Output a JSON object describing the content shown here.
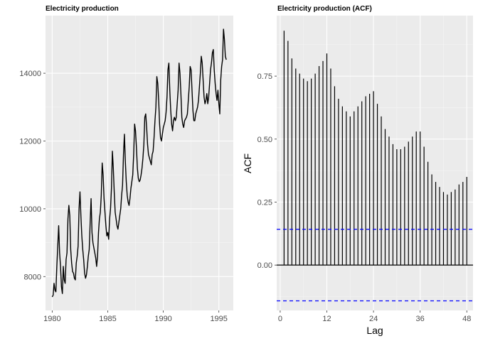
{
  "chart_data": [
    {
      "type": "line",
      "title": "Electricity production",
      "xlabel": "",
      "ylabel": "",
      "xlim": [
        1979.4,
        1996.3
      ],
      "ylim": [
        7000,
        15700
      ],
      "xticks": [
        1980,
        1985,
        1990,
        1995
      ],
      "xtick_labels": [
        "1980",
        "1985",
        "1990",
        "1995"
      ],
      "yticks": [
        8000,
        10000,
        12000,
        14000
      ],
      "ytick_labels": [
        "8000",
        "10000",
        "12000",
        "14000"
      ],
      "grid": true,
      "series": [
        {
          "color": "#000000",
          "x": [
            1980.0,
            1980.083,
            1980.167,
            1980.25,
            1980.333,
            1980.417,
            1980.5,
            1980.583,
            1980.667,
            1980.75,
            1980.833,
            1980.917,
            1981.0,
            1981.083,
            1981.167,
            1981.25,
            1981.333,
            1981.417,
            1981.5,
            1981.583,
            1981.667,
            1981.75,
            1981.833,
            1981.917,
            1982.0,
            1982.083,
            1982.167,
            1982.25,
            1982.333,
            1982.417,
            1982.5,
            1982.583,
            1982.667,
            1982.75,
            1982.833,
            1982.917,
            1983.0,
            1983.083,
            1983.167,
            1983.25,
            1983.333,
            1983.417,
            1983.5,
            1983.583,
            1983.667,
            1983.75,
            1983.833,
            1983.917,
            1984.0,
            1984.083,
            1984.167,
            1984.25,
            1984.333,
            1984.417,
            1984.5,
            1984.583,
            1984.667,
            1984.75,
            1984.833,
            1984.917,
            1985.0,
            1985.083,
            1985.167,
            1985.25,
            1985.333,
            1985.417,
            1985.5,
            1985.583,
            1985.667,
            1985.75,
            1985.833,
            1985.917,
            1986.0,
            1986.083,
            1986.167,
            1986.25,
            1986.333,
            1986.417,
            1986.5,
            1986.583,
            1986.667,
            1986.75,
            1986.833,
            1986.917,
            1987.0,
            1987.083,
            1987.167,
            1987.25,
            1987.333,
            1987.417,
            1987.5,
            1987.583,
            1987.667,
            1987.75,
            1987.833,
            1987.917,
            1988.0,
            1988.083,
            1988.167,
            1988.25,
            1988.333,
            1988.417,
            1988.5,
            1988.583,
            1988.667,
            1988.75,
            1988.833,
            1988.917,
            1989.0,
            1989.083,
            1989.167,
            1989.25,
            1989.333,
            1989.417,
            1989.5,
            1989.583,
            1989.667,
            1989.75,
            1989.833,
            1989.917,
            1990.0,
            1990.083,
            1990.167,
            1990.25,
            1990.333,
            1990.417,
            1990.5,
            1990.583,
            1990.667,
            1990.75,
            1990.833,
            1990.917,
            1991.0,
            1991.083,
            1991.167,
            1991.25,
            1991.333,
            1991.417,
            1991.5,
            1991.583,
            1991.667,
            1991.75,
            1991.833,
            1991.917,
            1992.0,
            1992.083,
            1992.167,
            1992.25,
            1992.333,
            1992.417,
            1992.5,
            1992.583,
            1992.667,
            1992.75,
            1992.833,
            1992.917,
            1993.0,
            1993.083,
            1993.167,
            1993.25,
            1993.333,
            1993.417,
            1993.5,
            1993.583,
            1993.667,
            1993.75,
            1993.833,
            1993.917,
            1994.0,
            1994.083,
            1994.167,
            1994.25,
            1994.333,
            1994.417,
            1994.5,
            1994.583,
            1994.667,
            1994.75,
            1994.833,
            1994.917,
            1995.0,
            1995.083,
            1995.167,
            1995.25,
            1995.333,
            1995.417,
            1995.5,
            1995.583,
            1995.667
          ],
          "y": [
            7400,
            7450,
            7800,
            7600,
            7550,
            8300,
            8900,
            9500,
            8700,
            8300,
            7700,
            7500,
            8300,
            7900,
            7800,
            8500,
            8700,
            9700,
            10100,
            9800,
            8800,
            8400,
            8150,
            8100,
            7950,
            7900,
            8400,
            8600,
            8900,
            10000,
            10500,
            9800,
            9200,
            8800,
            8500,
            8100,
            7950,
            8050,
            8300,
            8600,
            8800,
            9600,
            10300,
            9300,
            9000,
            8850,
            8700,
            8550,
            8300,
            8600,
            9300,
            9700,
            9900,
            10400,
            11350,
            11000,
            10300,
            9900,
            9500,
            9200,
            9300,
            9100,
            9700,
            10000,
            10600,
            11700,
            11200,
            10500,
            9900,
            9700,
            9500,
            9400,
            9600,
            9800,
            10000,
            10400,
            10700,
            11600,
            12200,
            11400,
            10800,
            10400,
            10200,
            10100,
            10300,
            10600,
            10800,
            11000,
            11600,
            12500,
            12300,
            11800,
            11200,
            10900,
            10800,
            10850,
            11000,
            11200,
            11500,
            11900,
            12700,
            12800,
            12400,
            11900,
            11600,
            11500,
            11400,
            11300,
            11600,
            11700,
            12100,
            12600,
            13000,
            13900,
            13700,
            13200,
            12500,
            12100,
            12000,
            12200,
            12400,
            12500,
            12600,
            12850,
            13300,
            14100,
            14300,
            13500,
            12900,
            12500,
            12300,
            12600,
            12700,
            12600,
            12700,
            13100,
            13500,
            14300,
            14000,
            13400,
            12700,
            12500,
            12400,
            12600,
            12650,
            12700,
            12800,
            13200,
            13600,
            14200,
            14100,
            13500,
            12900,
            12600,
            12600,
            12800,
            12900,
            13000,
            13200,
            13600,
            14000,
            14500,
            14300,
            13800,
            13300,
            13100,
            13200,
            13400,
            13100,
            13300,
            13700,
            14100,
            14300,
            14600,
            14700,
            14100,
            13700,
            13400,
            13200,
            13500,
            13100,
            12800,
            13800,
            14200,
            14400,
            15300,
            15000,
            14500,
            14400
          ]
        }
      ]
    },
    {
      "type": "bar",
      "title": "Electricity production (ACF)",
      "xlabel": "Lag",
      "ylabel": "ACF",
      "xlim": [
        -0.9,
        49.6
      ],
      "ylim": [
        -0.18,
        0.99
      ],
      "xticks": [
        0,
        12,
        24,
        36,
        48
      ],
      "xtick_labels": [
        "0",
        "12",
        "24",
        "36",
        "48"
      ],
      "yticks": [
        0.0,
        0.25,
        0.5,
        0.75
      ],
      "ytick_labels": [
        "0.00",
        "0.25",
        "0.50",
        "0.75"
      ],
      "grid": true,
      "confidence_band": 0.142,
      "band_color": "#0000ff",
      "lags": [
        1,
        2,
        3,
        4,
        5,
        6,
        7,
        8,
        9,
        10,
        11,
        12,
        13,
        14,
        15,
        16,
        17,
        18,
        19,
        20,
        21,
        22,
        23,
        24,
        25,
        26,
        27,
        28,
        29,
        30,
        31,
        32,
        33,
        34,
        35,
        36,
        37,
        38,
        39,
        40,
        41,
        42,
        43,
        44,
        45,
        46,
        47,
        48
      ],
      "values": [
        0.93,
        0.89,
        0.82,
        0.78,
        0.76,
        0.74,
        0.73,
        0.74,
        0.76,
        0.79,
        0.81,
        0.84,
        0.78,
        0.71,
        0.66,
        0.63,
        0.61,
        0.59,
        0.61,
        0.63,
        0.65,
        0.67,
        0.68,
        0.69,
        0.64,
        0.59,
        0.54,
        0.51,
        0.48,
        0.46,
        0.46,
        0.47,
        0.49,
        0.51,
        0.53,
        0.53,
        0.47,
        0.41,
        0.36,
        0.33,
        0.31,
        0.29,
        0.28,
        0.29,
        0.3,
        0.32,
        0.33,
        0.35
      ]
    }
  ]
}
